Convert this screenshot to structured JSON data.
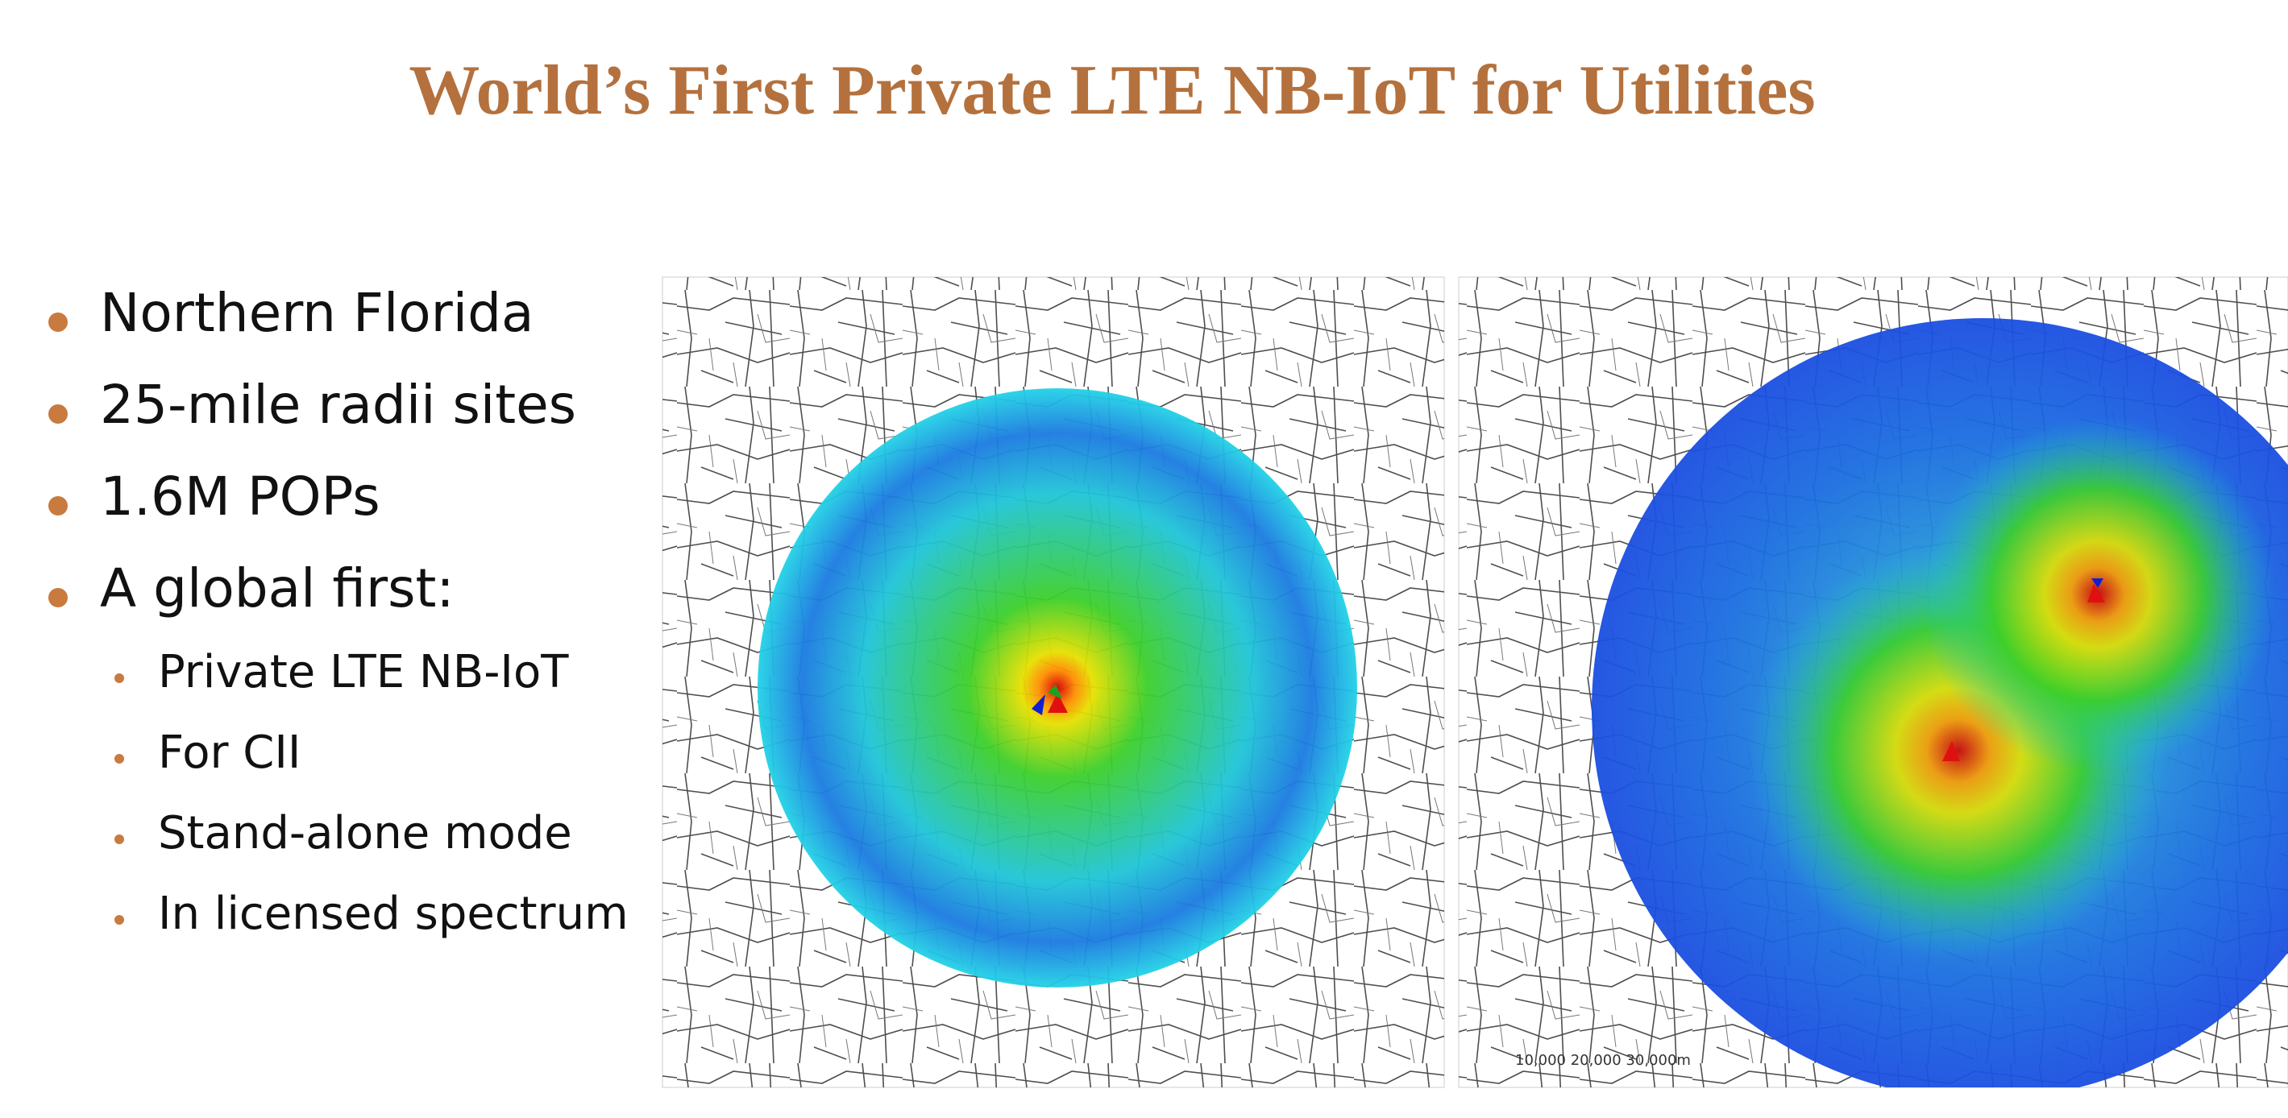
{
  "title": "World’s First Private LTE NB-IoT for Utilities",
  "bullets": [
    "Northern Florida",
    "25-mile radii sites",
    "1.6M POPs",
    "A global first:"
  ],
  "sub_bullets": [
    "Private LTE NB-IoT",
    "For CII",
    "Stand-alone mode",
    "In licensed spectrum"
  ],
  "map_scale_label": "10,000 20,000 30,000m"
}
